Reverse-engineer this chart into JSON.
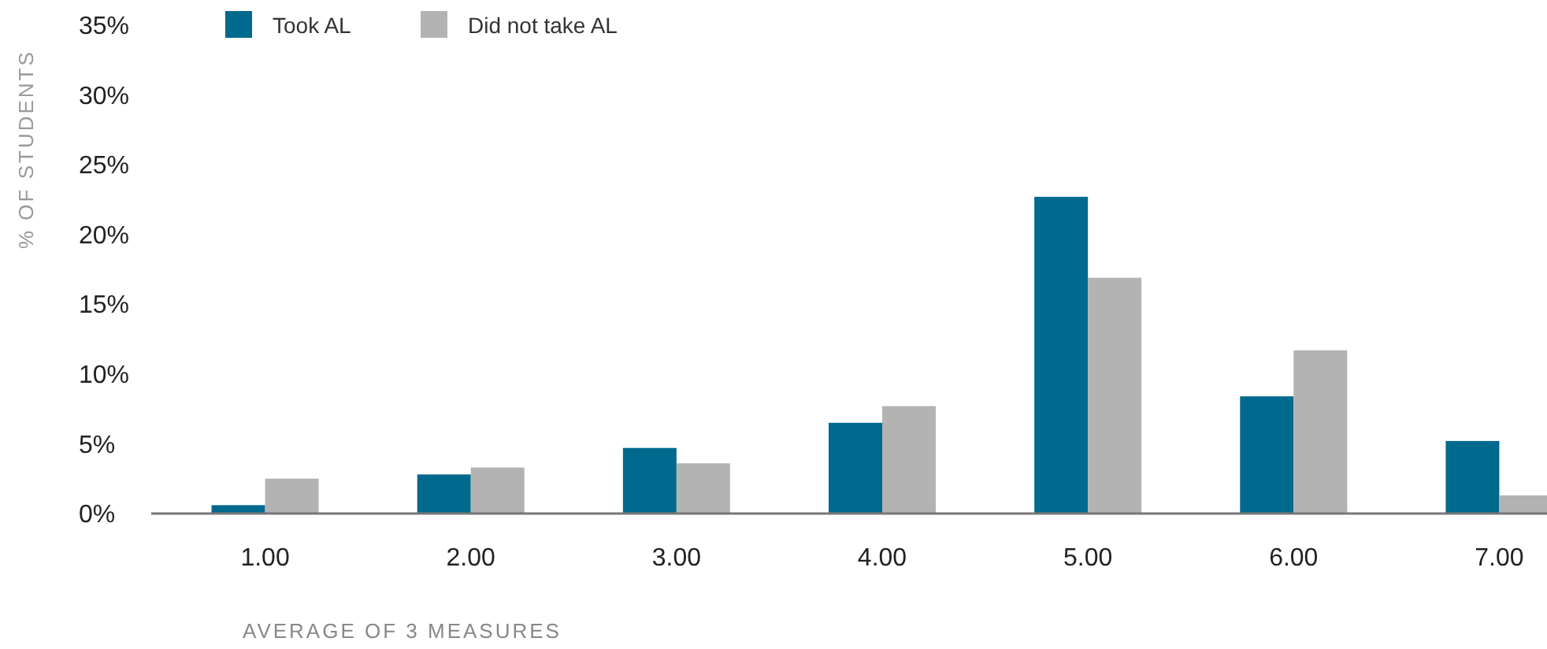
{
  "chart_data": {
    "type": "bar",
    "xlabel": "AVERAGE OF 3 MEASURES",
    "ylabel": "% OF STUDENTS",
    "categories": [
      "1.00",
      "2.00",
      "3.00",
      "4.00",
      "5.00",
      "6.00",
      "7.00"
    ],
    "series": [
      {
        "name": "Took AL",
        "color": "#00698e",
        "values": [
          0.6,
          2.8,
          4.7,
          6.5,
          22.7,
          8.4,
          5.2
        ]
      },
      {
        "name": "Did not take AL",
        "color": "#b3b3b3",
        "values": [
          2.5,
          3.3,
          3.6,
          7.7,
          16.9,
          11.7,
          1.3
        ]
      }
    ],
    "ylim": [
      0,
      35
    ],
    "yticks": [
      {
        "value": 0,
        "label": "0%"
      },
      {
        "value": 5,
        "label": "5%"
      },
      {
        "value": 10,
        "label": "10%"
      },
      {
        "value": 15,
        "label": "15%"
      },
      {
        "value": 20,
        "label": "20%"
      },
      {
        "value": 25,
        "label": "25%"
      },
      {
        "value": 30,
        "label": "30%"
      },
      {
        "value": 35,
        "label": "35%"
      }
    ],
    "grid": false,
    "legend": "top left"
  }
}
